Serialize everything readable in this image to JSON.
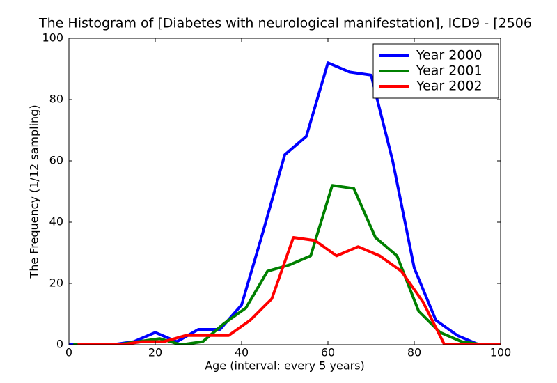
{
  "chart_data": {
    "type": "line",
    "title": "The Histogram of [Diabetes with neurological manifestation], ICD9 - [2506",
    "x_label": "Age (interval: every 5 years)",
    "y_label": "The Frequency (1/12 sampling)",
    "xlim": [
      0,
      100
    ],
    "ylim": [
      0,
      100
    ],
    "xticks": [
      0,
      20,
      40,
      60,
      80,
      100
    ],
    "yticks": [
      0,
      20,
      40,
      60,
      80,
      100
    ],
    "legend": "upper right",
    "series": [
      {
        "name": "Year 2000",
        "color": "#0000ff",
        "x": [
          0,
          5,
          10,
          15,
          20,
          25,
          30,
          35,
          40,
          45,
          50,
          55,
          60,
          65,
          70,
          75,
          80,
          85,
          90,
          95,
          100
        ],
        "values": [
          0,
          0,
          0,
          1,
          4,
          1,
          5,
          5,
          13,
          37,
          62,
          68,
          92,
          89,
          88,
          60,
          25,
          8,
          3,
          0,
          0
        ]
      },
      {
        "name": "Year 2001",
        "color": "#008000",
        "x": [
          1,
          6,
          11,
          16,
          21,
          26,
          31,
          36,
          41,
          46,
          51,
          56,
          61,
          66,
          71,
          76,
          81,
          86,
          91,
          96,
          100
        ],
        "values": [
          0,
          0,
          0,
          1,
          2,
          0,
          1,
          7,
          12,
          24,
          26,
          29,
          52,
          51,
          35,
          29,
          11,
          4,
          1,
          0,
          0
        ]
      },
      {
        "name": "Year 2002",
        "color": "#ff0000",
        "x": [
          2,
          7,
          12,
          17,
          22,
          27,
          32,
          37,
          42,
          47,
          52,
          57,
          62,
          67,
          72,
          77,
          82,
          87,
          92,
          97,
          100
        ],
        "values": [
          0,
          0,
          0,
          1,
          1,
          3,
          3,
          3,
          8,
          15,
          35,
          34,
          29,
          32,
          29,
          24,
          14,
          0,
          0,
          0,
          0
        ]
      }
    ]
  }
}
